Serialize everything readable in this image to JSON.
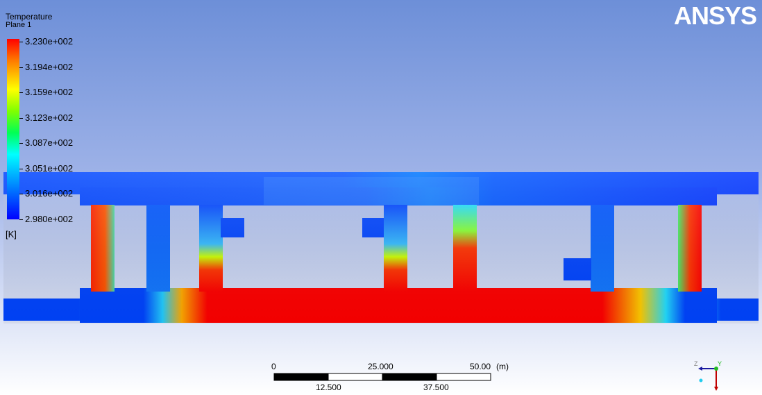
{
  "legend": {
    "title": "Temperature",
    "subtitle": "Plane 1",
    "unit": "[K]",
    "ticks": [
      "3.230e+002",
      "3.194e+002",
      "3.159e+002",
      "3.123e+002",
      "3.087e+002",
      "3.051e+002",
      "3.016e+002",
      "2.980e+002"
    ]
  },
  "logo": "ANSYS",
  "scale_bar": {
    "top_labels": [
      "0",
      "25.000",
      "50.00"
    ],
    "bottom_labels": [
      "12.500",
      "37.500"
    ],
    "unit": "(m)"
  },
  "axis_triad": {
    "x_label": "",
    "y_label": "Y",
    "z_label": "Z"
  },
  "colors": {
    "hot": "#ff0000",
    "cold": "#0033ff",
    "mid": "#00ccff"
  }
}
